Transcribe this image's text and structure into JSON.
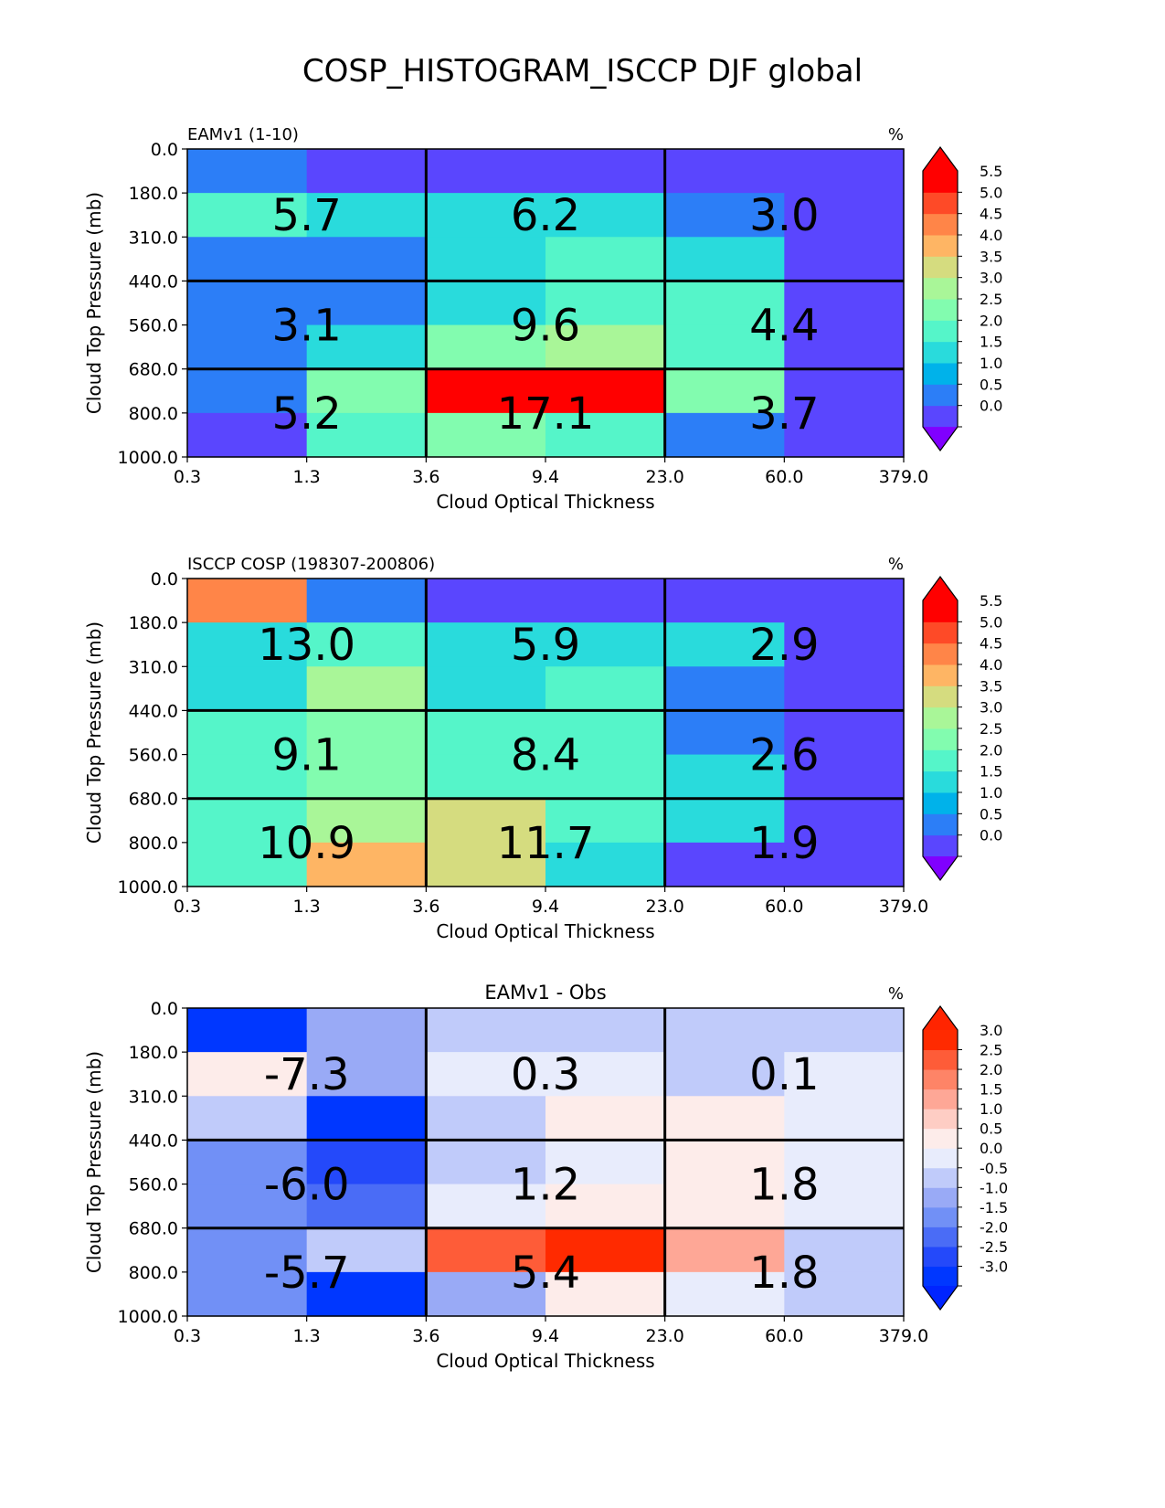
{
  "title": "COSP_HISTOGRAM_ISCCP DJF global",
  "chart_data": [
    {
      "type": "heatmap",
      "title_left": "EAMv1 (1-10)",
      "title_center": "",
      "units": "%",
      "xlabel": "Cloud Optical Thickness",
      "ylabel": "Cloud Top Pressure (mb)",
      "x_ticks": [
        "0.3",
        "1.3",
        "3.6",
        "9.4",
        "23.0",
        "60.0",
        "379.0"
      ],
      "y_ticks": [
        "0.0",
        "180.0",
        "310.0",
        "440.0",
        "560.0",
        "680.0",
        "800.0",
        "1000.0"
      ],
      "cell_values": [
        [
          0.8,
          0.2,
          0.2,
          0.2,
          0.2,
          0.2
        ],
        [
          2.0,
          1.5,
          1.5,
          1.5,
          0.8,
          0.2
        ],
        [
          0.8,
          0.8,
          1.5,
          2.2,
          1.5,
          0.2
        ],
        [
          0.8,
          0.8,
          1.5,
          2.0,
          2.0,
          0.2
        ],
        [
          0.8,
          1.5,
          2.8,
          3.3,
          2.2,
          0.2
        ],
        [
          0.8,
          2.8,
          6.0,
          6.0,
          2.8,
          0.2
        ],
        [
          0.2,
          2.0,
          2.8,
          2.0,
          0.8,
          0.2
        ]
      ],
      "group_labels": [
        [
          "5.7",
          "6.2",
          "3.0"
        ],
        [
          "3.1",
          "9.6",
          "4.4"
        ],
        [
          "5.2",
          "17.1",
          "3.7"
        ]
      ],
      "colorbar": {
        "labels": [
          "0.0",
          "0.5",
          "1.0",
          "1.5",
          "2.0",
          "2.5",
          "3.0",
          "3.5",
          "4.0",
          "4.5",
          "5.0",
          "5.5"
        ],
        "colors": [
          "#5a46fe",
          "#2c7ef7",
          "#00b2ea",
          "#29dbdc",
          "#55f5c9",
          "#82fcaf",
          "#a9f698",
          "#d5dc7f",
          "#feb564",
          "#ff8548",
          "#fe4a27",
          "#ff0000"
        ],
        "under_color": "#8000ff",
        "over_color": "#ff0000"
      }
    },
    {
      "type": "heatmap",
      "title_left": "ISCCP COSP (198307-200806)",
      "title_center": "",
      "units": "%",
      "xlabel": "Cloud Optical Thickness",
      "ylabel": "Cloud Top Pressure (mb)",
      "x_ticks": [
        "0.3",
        "1.3",
        "3.6",
        "9.4",
        "23.0",
        "60.0",
        "379.0"
      ],
      "y_ticks": [
        "0.0",
        "180.0",
        "310.0",
        "440.0",
        "560.0",
        "680.0",
        "800.0",
        "1000.0"
      ],
      "cell_values": [
        [
          4.7,
          0.8,
          0.2,
          0.2,
          0.2,
          0.2
        ],
        [
          1.5,
          2.0,
          1.5,
          1.5,
          1.5,
          0.2
        ],
        [
          1.5,
          3.2,
          1.5,
          2.0,
          0.8,
          0.2
        ],
        [
          2.0,
          2.8,
          2.0,
          2.0,
          0.8,
          0.2
        ],
        [
          2.0,
          2.8,
          2.2,
          2.2,
          1.5,
          0.2
        ],
        [
          2.0,
          3.3,
          3.7,
          2.2,
          1.5,
          0.2
        ],
        [
          2.0,
          4.2,
          3.7,
          1.5,
          0.2,
          0.2
        ]
      ],
      "group_labels": [
        [
          "13.0",
          "5.9",
          "2.9"
        ],
        [
          "9.1",
          "8.4",
          "2.6"
        ],
        [
          "10.9",
          "11.7",
          "1.9"
        ]
      ],
      "colorbar": {
        "labels": [
          "0.0",
          "0.5",
          "1.0",
          "1.5",
          "2.0",
          "2.5",
          "3.0",
          "3.5",
          "4.0",
          "4.5",
          "5.0",
          "5.5"
        ],
        "colors": [
          "#5a46fe",
          "#2c7ef7",
          "#00b2ea",
          "#29dbdc",
          "#55f5c9",
          "#82fcaf",
          "#a9f698",
          "#d5dc7f",
          "#feb564",
          "#ff8548",
          "#fe4a27",
          "#ff0000"
        ],
        "under_color": "#8000ff",
        "over_color": "#ff0000"
      }
    },
    {
      "type": "heatmap",
      "title_left": "",
      "title_center": "EAMv1 - Obs",
      "units": "%",
      "xlabel": "Cloud Optical Thickness",
      "ylabel": "Cloud Top Pressure (mb)",
      "x_ticks": [
        "0.3",
        "1.3",
        "3.6",
        "9.4",
        "23.0",
        "60.0",
        "379.0"
      ],
      "y_ticks": [
        "0.0",
        "180.0",
        "310.0",
        "440.0",
        "560.0",
        "680.0",
        "800.0",
        "1000.0"
      ],
      "cell_values": [
        [
          -3.0,
          -0.8,
          -0.3,
          -0.3,
          -0.3,
          -0.3
        ],
        [
          0.8,
          -0.8,
          0.3,
          0.3,
          -0.3,
          0.3
        ],
        [
          -0.3,
          -2.8,
          -0.3,
          0.8,
          0.8,
          0.3
        ],
        [
          -1.3,
          -2.3,
          -0.3,
          0.3,
          0.8,
          0.3
        ],
        [
          -1.3,
          -1.8,
          0.3,
          0.8,
          0.8,
          0.3
        ],
        [
          -1.3,
          -0.3,
          2.8,
          3.2,
          1.8,
          -0.3
        ],
        [
          -1.3,
          -2.8,
          -0.8,
          0.8,
          0.3,
          -0.3
        ]
      ],
      "group_labels": [
        [
          "-7.3",
          "0.3",
          "0.1"
        ],
        [
          "-6.0",
          "1.2",
          "1.8"
        ],
        [
          "-5.7",
          "5.4",
          "1.8"
        ]
      ],
      "colorbar": {
        "labels": [
          "-3.0",
          "-2.5",
          "-2.0",
          "-1.5",
          "-1.0",
          "-0.5",
          "0.0",
          "0.5",
          "1.0",
          "1.5",
          "2.0",
          "2.5",
          "3.0"
        ],
        "colors": [
          "#0037ff",
          "#2449fa",
          "#4a6cf6",
          "#7190f6",
          "#99aaf6",
          "#c0cbfa",
          "#e8ecfc",
          "#fdecea",
          "#fecdc4",
          "#fea796",
          "#fe8467",
          "#fe5c38",
          "#ff2a00"
        ],
        "under_color": "#0024ff",
        "over_color": "#ff2400"
      }
    }
  ]
}
